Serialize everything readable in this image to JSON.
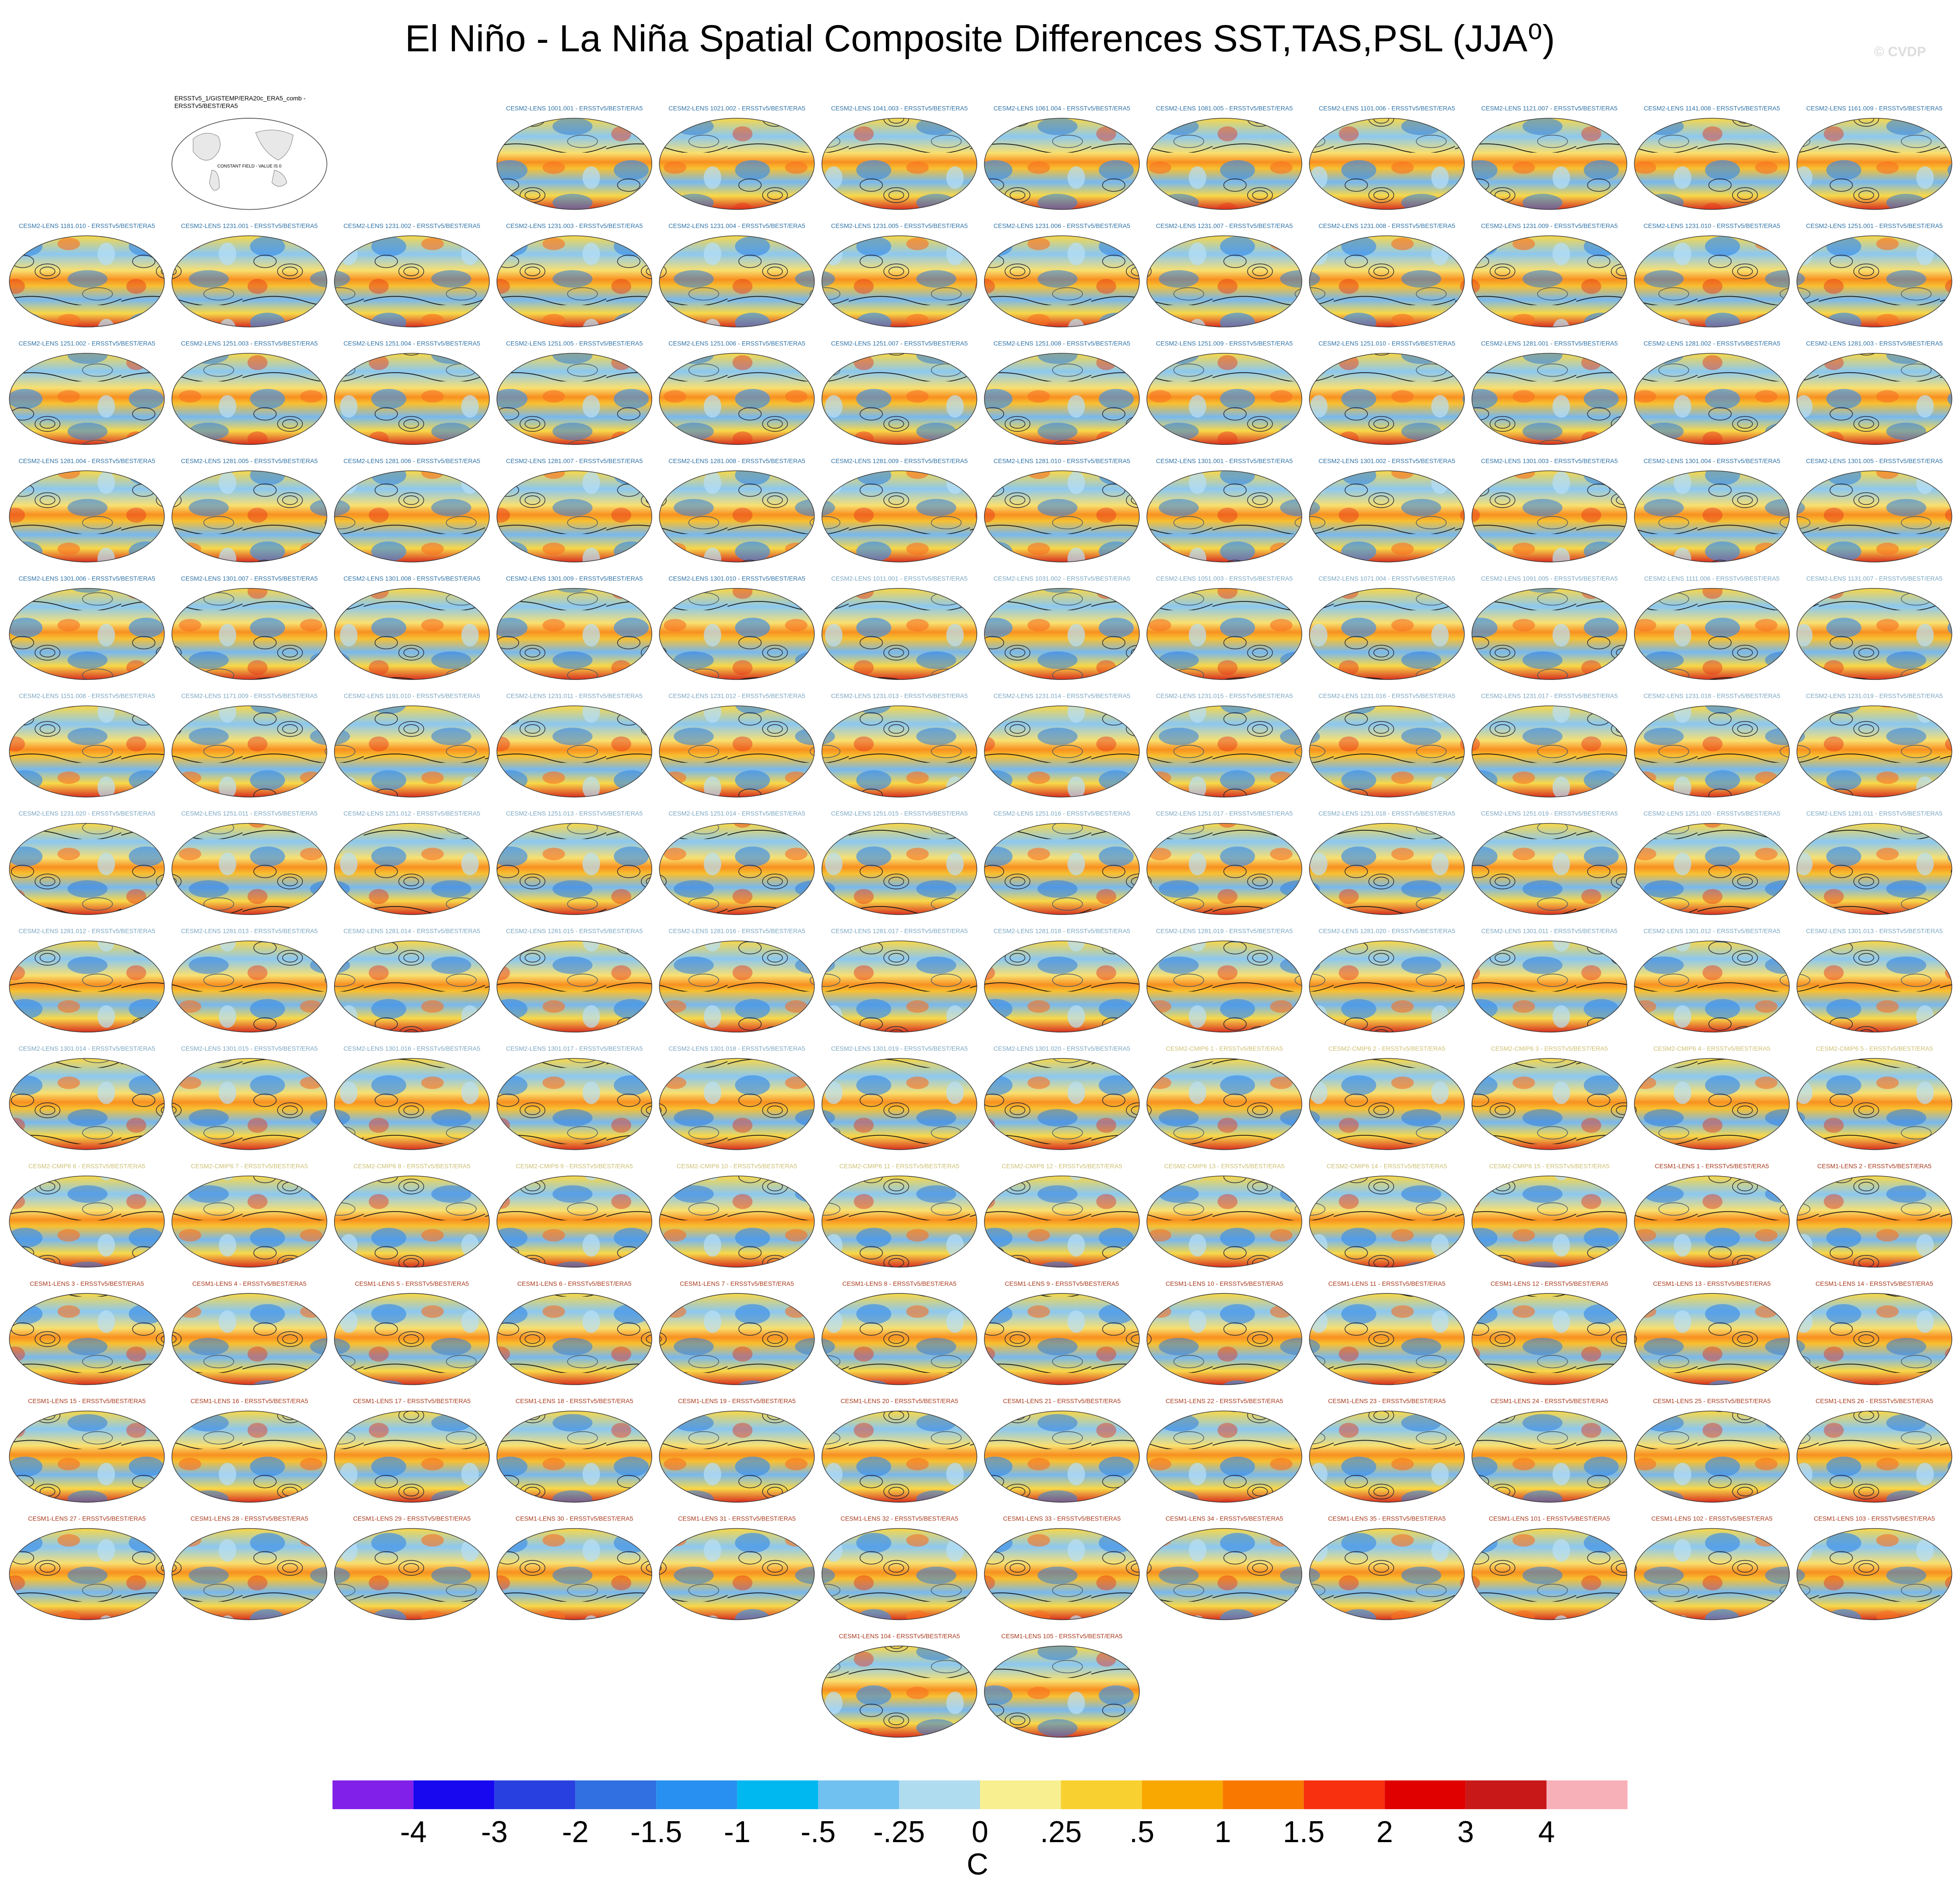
{
  "title": "El Niño - La Niña Spatial Composite Differences SST,TAS,PSL (JJA⁰)",
  "credit": "© CVDP",
  "obs": {
    "title_lines": [
      "ERSSTv5_1/GISTEMP/ERA20c_ERA5_comb -",
      "ERSSTv5/BEST/ERA5"
    ],
    "note": "CONSTANT FIELD - VALUE IS 0"
  },
  "rows": [
    [
      null,
      null,
      null,
      {
        "title": "CESM2-LENS 1001.001 - ERSSTv5/BEST/ERA5",
        "color": "#2f72a6"
      },
      {
        "title": "CESM2-LENS 1021.002 - ERSSTv5/BEST/ERA5",
        "color": "#2f72a6"
      },
      {
        "title": "CESM2-LENS 1041.003 - ERSSTv5/BEST/ERA5",
        "color": "#2f72a6"
      },
      {
        "title": "CESM2-LENS 1061.004 - ERSSTv5/BEST/ERA5",
        "color": "#2f72a6"
      },
      {
        "title": "CESM2-LENS 1081.005 - ERSSTv5/BEST/ERA5",
        "color": "#2f72a6"
      },
      {
        "title": "CESM2-LENS 1101.006 - ERSSTv5/BEST/ERA5",
        "color": "#2f72a6"
      },
      {
        "title": "CESM2-LENS 1121.007 - ERSSTv5/BEST/ERA5",
        "color": "#2f72a6"
      },
      {
        "title": "CESM2-LENS 1141.008 - ERSSTv5/BEST/ERA5",
        "color": "#2f72a6"
      },
      {
        "title": "CESM2-LENS 1161.009 - ERSSTv5/BEST/ERA5",
        "color": "#2f72a6"
      }
    ],
    [
      {
        "title": "CESM2-LENS 1181.010 - ERSSTv5/BEST/ERA5",
        "color": "#2f72a6"
      },
      {
        "title": "CESM2-LENS 1231.001 - ERSSTv5/BEST/ERA5",
        "color": "#2f72a6"
      },
      {
        "title": "CESM2-LENS 1231.002 - ERSSTv5/BEST/ERA5",
        "color": "#2f72a6"
      },
      {
        "title": "CESM2-LENS 1231.003 - ERSSTv5/BEST/ERA5",
        "color": "#2f72a6"
      },
      {
        "title": "CESM2-LENS 1231.004 - ERSSTv5/BEST/ERA5",
        "color": "#2f72a6"
      },
      {
        "title": "CESM2-LENS 1231.005 - ERSSTv5/BEST/ERA5",
        "color": "#2f72a6"
      },
      {
        "title": "CESM2-LENS 1231.006 - ERSSTv5/BEST/ERA5",
        "color": "#2f72a6"
      },
      {
        "title": "CESM2-LENS 1231.007 - ERSSTv5/BEST/ERA5",
        "color": "#2f72a6"
      },
      {
        "title": "CESM2-LENS 1231.008 - ERSSTv5/BEST/ERA5",
        "color": "#2f72a6"
      },
      {
        "title": "CESM2-LENS 1231.009 - ERSSTv5/BEST/ERA5",
        "color": "#2f72a6"
      },
      {
        "title": "CESM2-LENS 1231.010 - ERSSTv5/BEST/ERA5",
        "color": "#2f72a6"
      },
      {
        "title": "CESM2-LENS 1251.001 - ERSSTv5/BEST/ERA5",
        "color": "#2f72a6"
      }
    ],
    [
      {
        "title": "CESM2-LENS 1251.002 - ERSSTv5/BEST/ERA5",
        "color": "#2f72a6"
      },
      {
        "title": "CESM2-LENS 1251.003 - ERSSTv5/BEST/ERA5",
        "color": "#2f72a6"
      },
      {
        "title": "CESM2-LENS 1251.004 - ERSSTv5/BEST/ERA5",
        "color": "#2f72a6"
      },
      {
        "title": "CESM2-LENS 1251.005 - ERSSTv5/BEST/ERA5",
        "color": "#2f72a6"
      },
      {
        "title": "CESM2-LENS 1251.006 - ERSSTv5/BEST/ERA5",
        "color": "#2f72a6"
      },
      {
        "title": "CESM2-LENS 1251.007 - ERSSTv5/BEST/ERA5",
        "color": "#2f72a6"
      },
      {
        "title": "CESM2-LENS 1251.008 - ERSSTv5/BEST/ERA5",
        "color": "#2f72a6"
      },
      {
        "title": "CESM2-LENS 1251.009 - ERSSTv5/BEST/ERA5",
        "color": "#2f72a6"
      },
      {
        "title": "CESM2-LENS 1251.010 - ERSSTv5/BEST/ERA5",
        "color": "#2f72a6"
      },
      {
        "title": "CESM2-LENS 1281.001 - ERSSTv5/BEST/ERA5",
        "color": "#2f72a6"
      },
      {
        "title": "CESM2-LENS 1281.002 - ERSSTv5/BEST/ERA5",
        "color": "#2f72a6"
      },
      {
        "title": "CESM2-LENS 1281.003 - ERSSTv5/BEST/ERA5",
        "color": "#2f72a6"
      }
    ],
    [
      {
        "title": "CESM2-LENS 1281.004 - ERSSTv5/BEST/ERA5",
        "color": "#2f72a6"
      },
      {
        "title": "CESM2-LENS 1281.005 - ERSSTv5/BEST/ERA5",
        "color": "#2f72a6"
      },
      {
        "title": "CESM2-LENS 1281.006 - ERSSTv5/BEST/ERA5",
        "color": "#2f72a6"
      },
      {
        "title": "CESM2-LENS 1281.007 - ERSSTv5/BEST/ERA5",
        "color": "#2f72a6"
      },
      {
        "title": "CESM2-LENS 1281.008 - ERSSTv5/BEST/ERA5",
        "color": "#2f72a6"
      },
      {
        "title": "CESM2-LENS 1281.009 - ERSSTv5/BEST/ERA5",
        "color": "#2f72a6"
      },
      {
        "title": "CESM2-LENS 1281.010 - ERSSTv5/BEST/ERA5",
        "color": "#2f72a6"
      },
      {
        "title": "CESM2-LENS 1301.001 - ERSSTv5/BEST/ERA5",
        "color": "#2f72a6"
      },
      {
        "title": "CESM2-LENS 1301.002 - ERSSTv5/BEST/ERA5",
        "color": "#2f72a6"
      },
      {
        "title": "CESM2-LENS 1301.003 - ERSSTv5/BEST/ERA5",
        "color": "#2f72a6"
      },
      {
        "title": "CESM2-LENS 1301.004 - ERSSTv5/BEST/ERA5",
        "color": "#2f72a6"
      },
      {
        "title": "CESM2-LENS 1301.005 - ERSSTv5/BEST/ERA5",
        "color": "#2f72a6"
      }
    ],
    [
      {
        "title": "CESM2-LENS 1301.006 - ERSSTv5/BEST/ERA5",
        "color": "#2f72a6"
      },
      {
        "title": "CESM2-LENS 1301.007 - ERSSTv5/BEST/ERA5",
        "color": "#2f72a6"
      },
      {
        "title": "CESM2-LENS 1301.008 - ERSSTv5/BEST/ERA5",
        "color": "#2f72a6"
      },
      {
        "title": "CESM2-LENS 1301.009 - ERSSTv5/BEST/ERA5",
        "color": "#2f72a6"
      },
      {
        "title": "CESM2-LENS 1301.010 - ERSSTv5/BEST/ERA5",
        "color": "#2f72a6"
      },
      {
        "title": "CESM2-LENS 1011.001 - ERSSTv5/BEST/ERA5",
        "color": "#7aa6c2"
      },
      {
        "title": "CESM2-LENS 1031.002 - ERSSTv5/BEST/ERA5",
        "color": "#7aa6c2"
      },
      {
        "title": "CESM2-LENS 1051.003 - ERSSTv5/BEST/ERA5",
        "color": "#7aa6c2"
      },
      {
        "title": "CESM2-LENS 1071.004 - ERSSTv5/BEST/ERA5",
        "color": "#7aa6c2"
      },
      {
        "title": "CESM2-LENS 1091.005 - ERSSTv5/BEST/ERA5",
        "color": "#7aa6c2"
      },
      {
        "title": "CESM2-LENS 1111.006 - ERSSTv5/BEST/ERA5",
        "color": "#7aa6c2"
      },
      {
        "title": "CESM2-LENS 1131.007 - ERSSTv5/BEST/ERA5",
        "color": "#7aa6c2"
      }
    ],
    [
      {
        "title": "CESM2-LENS 1151.008 - ERSSTv5/BEST/ERA5",
        "color": "#7aa6c2"
      },
      {
        "title": "CESM2-LENS 1171.009 - ERSSTv5/BEST/ERA5",
        "color": "#7aa6c2"
      },
      {
        "title": "CESM2-LENS 1191.010 - ERSSTv5/BEST/ERA5",
        "color": "#7aa6c2"
      },
      {
        "title": "CESM2-LENS 1231.011 - ERSSTv5/BEST/ERA5",
        "color": "#7aa6c2"
      },
      {
        "title": "CESM2-LENS 1231.012 - ERSSTv5/BEST/ERA5",
        "color": "#7aa6c2"
      },
      {
        "title": "CESM2-LENS 1231.013 - ERSSTv5/BEST/ERA5",
        "color": "#7aa6c2"
      },
      {
        "title": "CESM2-LENS 1231.014 - ERSSTv5/BEST/ERA5",
        "color": "#7aa6c2"
      },
      {
        "title": "CESM2-LENS 1231.015 - ERSSTv5/BEST/ERA5",
        "color": "#7aa6c2"
      },
      {
        "title": "CESM2-LENS 1231.016 - ERSSTv5/BEST/ERA5",
        "color": "#7aa6c2"
      },
      {
        "title": "CESM2-LENS 1231.017 - ERSSTv5/BEST/ERA5",
        "color": "#7aa6c2"
      },
      {
        "title": "CESM2-LENS 1231.018 - ERSSTv5/BEST/ERA5",
        "color": "#7aa6c2"
      },
      {
        "title": "CESM2-LENS 1231.019 - ERSSTv5/BEST/ERA5",
        "color": "#7aa6c2"
      }
    ],
    [
      {
        "title": "CESM2-LENS 1231.020 - ERSSTv5/BEST/ERA5",
        "color": "#7aa6c2"
      },
      {
        "title": "CESM2-LENS 1251.011 - ERSSTv5/BEST/ERA5",
        "color": "#7aa6c2"
      },
      {
        "title": "CESM2-LENS 1251.012 - ERSSTv5/BEST/ERA5",
        "color": "#7aa6c2"
      },
      {
        "title": "CESM2-LENS 1251.013 - ERSSTv5/BEST/ERA5",
        "color": "#7aa6c2"
      },
      {
        "title": "CESM2-LENS 1251.014 - ERSSTv5/BEST/ERA5",
        "color": "#7aa6c2"
      },
      {
        "title": "CESM2-LENS 1251.015 - ERSSTv5/BEST/ERA5",
        "color": "#7aa6c2"
      },
      {
        "title": "CESM2-LENS 1251.016 - ERSSTv5/BEST/ERA5",
        "color": "#7aa6c2"
      },
      {
        "title": "CESM2-LENS 1251.017 - ERSSTv5/BEST/ERA5",
        "color": "#7aa6c2"
      },
      {
        "title": "CESM2-LENS 1251.018 - ERSSTv5/BEST/ERA5",
        "color": "#7aa6c2"
      },
      {
        "title": "CESM2-LENS 1251.019 - ERSSTv5/BEST/ERA5",
        "color": "#7aa6c2"
      },
      {
        "title": "CESM2-LENS 1251.020 - ERSSTv5/BEST/ERA5",
        "color": "#7aa6c2"
      },
      {
        "title": "CESM2-LENS 1281.011 - ERSSTv5/BEST/ERA5",
        "color": "#7aa6c2"
      }
    ],
    [
      {
        "title": "CESM2-LENS 1281.012 - ERSSTv5/BEST/ERA5",
        "color": "#7aa6c2"
      },
      {
        "title": "CESM2-LENS 1281.013 - ERSSTv5/BEST/ERA5",
        "color": "#7aa6c2"
      },
      {
        "title": "CESM2-LENS 1281.014 - ERSSTv5/BEST/ERA5",
        "color": "#7aa6c2"
      },
      {
        "title": "CESM2-LENS 1281.015 - ERSSTv5/BEST/ERA5",
        "color": "#7aa6c2"
      },
      {
        "title": "CESM2-LENS 1281.016 - ERSSTv5/BEST/ERA5",
        "color": "#7aa6c2"
      },
      {
        "title": "CESM2-LENS 1281.017 - ERSSTv5/BEST/ERA5",
        "color": "#7aa6c2"
      },
      {
        "title": "CESM2-LENS 1281.018 - ERSSTv5/BEST/ERA5",
        "color": "#7aa6c2"
      },
      {
        "title": "CESM2-LENS 1281.019 - ERSSTv5/BEST/ERA5",
        "color": "#7aa6c2"
      },
      {
        "title": "CESM2-LENS 1281.020 - ERSSTv5/BEST/ERA5",
        "color": "#7aa6c2"
      },
      {
        "title": "CESM2-LENS 1301.011 - ERSSTv5/BEST/ERA5",
        "color": "#7aa6c2"
      },
      {
        "title": "CESM2-LENS 1301.012 - ERSSTv5/BEST/ERA5",
        "color": "#7aa6c2"
      },
      {
        "title": "CESM2-LENS 1301.013 - ERSSTv5/BEST/ERA5",
        "color": "#7aa6c2"
      }
    ],
    [
      {
        "title": "CESM2-LENS 1301.014 - ERSSTv5/BEST/ERA5",
        "color": "#7aa6c2"
      },
      {
        "title": "CESM2-LENS 1301.015 - ERSSTv5/BEST/ERA5",
        "color": "#7aa6c2"
      },
      {
        "title": "CESM2-LENS 1301.016 - ERSSTv5/BEST/ERA5",
        "color": "#7aa6c2"
      },
      {
        "title": "CESM2-LENS 1301.017 - ERSSTv5/BEST/ERA5",
        "color": "#7aa6c2"
      },
      {
        "title": "CESM2-LENS 1301.018 - ERSSTv5/BEST/ERA5",
        "color": "#7aa6c2"
      },
      {
        "title": "CESM2-LENS 1301.019 - ERSSTv5/BEST/ERA5",
        "color": "#7aa6c2"
      },
      {
        "title": "CESM2-LENS 1301.020 - ERSSTv5/BEST/ERA5",
        "color": "#7aa6c2"
      },
      {
        "title": "CESM2-CMIP6 1 - ERSSTv5/BEST/ERA5",
        "color": "#cdbf72"
      },
      {
        "title": "CESM2-CMIP6 2 - ERSSTv5/BEST/ERA5",
        "color": "#cdbf72"
      },
      {
        "title": "CESM2-CMIP6 3 - ERSSTv5/BEST/ERA5",
        "color": "#cdbf72"
      },
      {
        "title": "CESM2-CMIP6 4 - ERSSTv5/BEST/ERA5",
        "color": "#cdbf72"
      },
      {
        "title": "CESM2-CMIP6 5 - ERSSTv5/BEST/ERA5",
        "color": "#cdbf72"
      }
    ],
    [
      {
        "title": "CESM2-CMIP6 6 - ERSSTv5/BEST/ERA5",
        "color": "#cdbf72"
      },
      {
        "title": "CESM2-CMIP6 7 - ERSSTv5/BEST/ERA5",
        "color": "#cdbf72"
      },
      {
        "title": "CESM2-CMIP6 8 - ERSSTv5/BEST/ERA5",
        "color": "#cdbf72"
      },
      {
        "title": "CESM2-CMIP6 9 - ERSSTv5/BEST/ERA5",
        "color": "#cdbf72"
      },
      {
        "title": "CESM2-CMIP6 10 - ERSSTv5/BEST/ERA5",
        "color": "#cdbf72"
      },
      {
        "title": "CESM2-CMIP6 11 - ERSSTv5/BEST/ERA5",
        "color": "#cdbf72"
      },
      {
        "title": "CESM2-CMIP6 12 - ERSSTv5/BEST/ERA5",
        "color": "#cdbf72"
      },
      {
        "title": "CESM2-CMIP6 13 - ERSSTv5/BEST/ERA5",
        "color": "#cdbf72"
      },
      {
        "title": "CESM2-CMIP6 14 - ERSSTv5/BEST/ERA5",
        "color": "#cdbf72"
      },
      {
        "title": "CESM2-CMIP6 15 - ERSSTv5/BEST/ERA5",
        "color": "#cdbf72"
      },
      {
        "title": "CESM1-LENS 1 - ERSSTv5/BEST/ERA5",
        "color": "#a8381c"
      },
      {
        "title": "CESM1-LENS 2 - ERSSTv5/BEST/ERA5",
        "color": "#a8381c"
      }
    ],
    [
      {
        "title": "CESM1-LENS 3 - ERSSTv5/BEST/ERA5",
        "color": "#a8381c"
      },
      {
        "title": "CESM1-LENS 4 - ERSSTv5/BEST/ERA5",
        "color": "#a8381c"
      },
      {
        "title": "CESM1-LENS 5 - ERSSTv5/BEST/ERA5",
        "color": "#a8381c"
      },
      {
        "title": "CESM1-LENS 6 - ERSSTv5/BEST/ERA5",
        "color": "#a8381c"
      },
      {
        "title": "CESM1-LENS 7 - ERSSTv5/BEST/ERA5",
        "color": "#a8381c"
      },
      {
        "title": "CESM1-LENS 8 - ERSSTv5/BEST/ERA5",
        "color": "#a8381c"
      },
      {
        "title": "CESM1-LENS 9 - ERSSTv5/BEST/ERA5",
        "color": "#a8381c"
      },
      {
        "title": "CESM1-LENS 10 - ERSSTv5/BEST/ERA5",
        "color": "#a8381c"
      },
      {
        "title": "CESM1-LENS 11 - ERSSTv5/BEST/ERA5",
        "color": "#a8381c"
      },
      {
        "title": "CESM1-LENS 12 - ERSSTv5/BEST/ERA5",
        "color": "#a8381c"
      },
      {
        "title": "CESM1-LENS 13 - ERSSTv5/BEST/ERA5",
        "color": "#a8381c"
      },
      {
        "title": "CESM1-LENS 14 - ERSSTv5/BEST/ERA5",
        "color": "#a8381c"
      }
    ],
    [
      {
        "title": "CESM1-LENS 15 - ERSSTv5/BEST/ERA5",
        "color": "#a8381c"
      },
      {
        "title": "CESM1-LENS 16 - ERSSTv5/BEST/ERA5",
        "color": "#a8381c"
      },
      {
        "title": "CESM1-LENS 17 - ERSSTv5/BEST/ERA5",
        "color": "#a8381c"
      },
      {
        "title": "CESM1-LENS 18 - ERSSTv5/BEST/ERA5",
        "color": "#a8381c"
      },
      {
        "title": "CESM1-LENS 19 - ERSSTv5/BEST/ERA5",
        "color": "#a8381c"
      },
      {
        "title": "CESM1-LENS 20 - ERSSTv5/BEST/ERA5",
        "color": "#a8381c"
      },
      {
        "title": "CESM1-LENS 21 - ERSSTv5/BEST/ERA5",
        "color": "#a8381c"
      },
      {
        "title": "CESM1-LENS 22 - ERSSTv5/BEST/ERA5",
        "color": "#a8381c"
      },
      {
        "title": "CESM1-LENS 23 - ERSSTv5/BEST/ERA5",
        "color": "#a8381c"
      },
      {
        "title": "CESM1-LENS 24 - ERSSTv5/BEST/ERA5",
        "color": "#a8381c"
      },
      {
        "title": "CESM1-LENS 25 - ERSSTv5/BEST/ERA5",
        "color": "#a8381c"
      },
      {
        "title": "CESM1-LENS 26 - ERSSTv5/BEST/ERA5",
        "color": "#a8381c"
      }
    ],
    [
      {
        "title": "CESM1-LENS 27 - ERSSTv5/BEST/ERA5",
        "color": "#a8381c"
      },
      {
        "title": "CESM1-LENS 28 - ERSSTv5/BEST/ERA5",
        "color": "#a8381c"
      },
      {
        "title": "CESM1-LENS 29 - ERSSTv5/BEST/ERA5",
        "color": "#a8381c"
      },
      {
        "title": "CESM1-LENS 30 - ERSSTv5/BEST/ERA5",
        "color": "#a8381c"
      },
      {
        "title": "CESM1-LENS 31 - ERSSTv5/BEST/ERA5",
        "color": "#a8381c"
      },
      {
        "title": "CESM1-LENS 32 - ERSSTv5/BEST/ERA5",
        "color": "#a8381c"
      },
      {
        "title": "CESM1-LENS 33 - ERSSTv5/BEST/ERA5",
        "color": "#a8381c"
      },
      {
        "title": "CESM1-LENS 34 - ERSSTv5/BEST/ERA5",
        "color": "#a8381c"
      },
      {
        "title": "CESM1-LENS 35 - ERSSTv5/BEST/ERA5",
        "color": "#a8381c"
      },
      {
        "title": "CESM1-LENS 101 - ERSSTv5/BEST/ERA5",
        "color": "#a8381c"
      },
      {
        "title": "CESM1-LENS 102 - ERSSTv5/BEST/ERA5",
        "color": "#a8381c"
      },
      {
        "title": "CESM1-LENS 103 - ERSSTv5/BEST/ERA5",
        "color": "#a8381c"
      }
    ],
    [
      null,
      null,
      null,
      null,
      null,
      {
        "title": "CESM1-LENS 104 - ERSSTv5/BEST/ERA5",
        "color": "#a8381c"
      },
      {
        "title": "CESM1-LENS 105 - ERSSTv5/BEST/ERA5",
        "color": "#a8381c"
      }
    ]
  ],
  "colorbar": {
    "colors": [
      "#8020e8",
      "#1808f0",
      "#2840e0",
      "#3070e0",
      "#2890f0",
      "#00b8f0",
      "#70c0f0",
      "#b0dcf0",
      "#f8f090",
      "#f8d030",
      "#f8a800",
      "#f87800",
      "#f83010",
      "#e00000",
      "#c81818",
      "#f8b0b8"
    ],
    "levels": [
      -4,
      -3,
      -2,
      -1.5,
      -1,
      {
        "value": -0.5,
        "label": "-.5"
      },
      {
        "value": -0.25,
        "label": "-.25"
      },
      0,
      {
        "value": 0.25,
        "label": ".25"
      },
      {
        "value": 0.5,
        "label": ".5"
      },
      1,
      1.5,
      2,
      3,
      4
    ],
    "unit": "C"
  }
}
